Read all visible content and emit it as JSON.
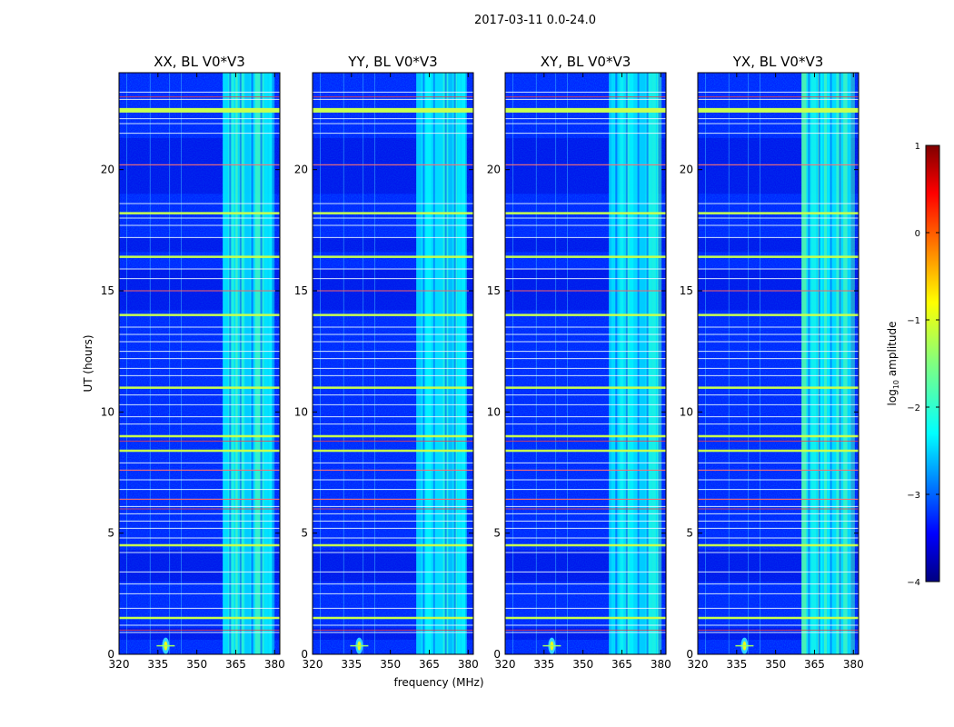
{
  "chart_data": {
    "type": "heatmap",
    "title": "2017-03-11 0.0-24.0",
    "xlabel": "frequency (MHz)",
    "ylabel": "UT (hours)",
    "xlim": [
      320,
      382
    ],
    "ylim": [
      0,
      24
    ],
    "xticks": [
      320,
      335,
      350,
      365,
      380
    ],
    "yticks": [
      0,
      5,
      10,
      15,
      20
    ],
    "panels": [
      {
        "title": "XX, BL V0*V3"
      },
      {
        "title": "YY, BL V0*V3"
      },
      {
        "title": "XY, BL V0*V3"
      },
      {
        "title": "YX, BL V0*V3"
      }
    ],
    "colorbar": {
      "label_prefix": "log",
      "label_sub": "10",
      "label_suffix": " amplitude",
      "range": [
        -4,
        1
      ],
      "ticks": [
        "1",
        "0",
        "−1",
        "−2",
        "−3",
        "−4"
      ],
      "tick_values": [
        1,
        0,
        -1,
        -2,
        -3,
        -4
      ],
      "colormap": "jet"
    },
    "features": {
      "rfi_band_mhz": [
        360,
        379
      ],
      "background_log_amplitude": -3.2,
      "band_log_amplitude": -2.2,
      "hot_spot": {
        "freq_mhz": 338,
        "ut_hours": 0.35,
        "log_amplitude": -1.0
      },
      "strong_horizontal_lines_ut": [
        22.45,
        18.2,
        16.4,
        14.0,
        11.0,
        9.0,
        8.4,
        4.5,
        1.5
      ],
      "weak_horizontal_lines_ut": [
        23.2,
        22.9,
        22.1,
        21.9,
        21.5,
        20.2,
        18.6,
        18.0,
        17.7,
        17.2,
        15.9,
        15.5,
        15.0,
        13.5,
        13.2,
        12.9,
        12.5,
        12.2,
        11.8,
        11.5,
        10.7,
        10.3,
        9.8,
        9.5,
        7.9,
        7.6,
        7.2,
        6.8,
        6.4,
        6.1,
        5.8,
        5.5,
        5.2,
        4.8,
        4.2,
        3.4,
        2.9,
        2.5,
        1.9,
        1.2,
        0.9
      ],
      "red_lines_ut": [
        23.0,
        20.2,
        15.0,
        8.8,
        7.6,
        6.4,
        6.0,
        1.0
      ]
    }
  }
}
